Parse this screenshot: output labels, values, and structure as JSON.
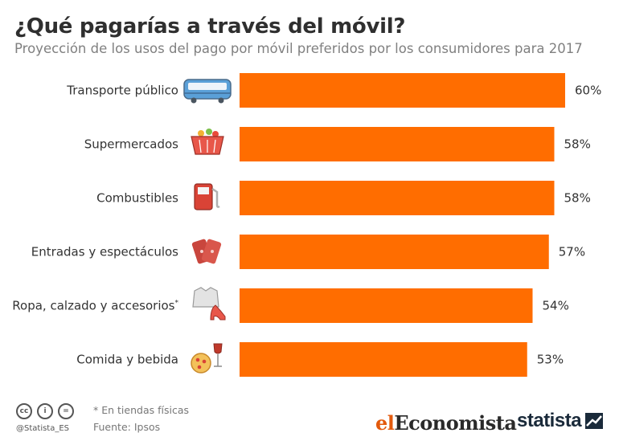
{
  "header": {
    "title": "¿Qué pagarías a través del móvil?",
    "subtitle": "Proyección de los usos del pago por móvil preferidos por los consumidores para 2017"
  },
  "chart_data": {
    "type": "bar",
    "orientation": "horizontal",
    "title": "¿Qué pagarías a través del móvil?",
    "subtitle": "Proyección de los usos del pago por móvil preferidos por los consumidores para 2017",
    "categories": [
      "Transporte público",
      "Supermercados",
      "Combustibles",
      "Entradas y espectáculos",
      "Ropa, calzado y accesorios",
      "Comida y bebida"
    ],
    "category_superscripts": [
      "",
      "",
      "",
      "",
      "*",
      ""
    ],
    "values": [
      60,
      58,
      58,
      57,
      54,
      53
    ],
    "value_labels": [
      "60%",
      "58%",
      "58%",
      "57%",
      "54%",
      "53%"
    ],
    "unit": "%",
    "xlim": [
      0,
      60
    ],
    "grid": false,
    "legend": "none",
    "bar_color": "#ff6d00",
    "icons": [
      "bus-icon",
      "basket-icon",
      "fuel-pump-icon",
      "tickets-icon",
      "clothing-icon",
      "pizza-wine-icon"
    ]
  },
  "footer": {
    "note": "* En tiendas físicas",
    "source": "Fuente: Ipsos",
    "handle": "@Statista_ES",
    "license_icons": [
      "cc-icon",
      "by-icon",
      "nd-icon"
    ],
    "brand_el": "el",
    "brand_economista": "Economista",
    "brand_statista": "statista"
  },
  "colors": {
    "bar": "#ff6d00",
    "title": "#2f2f2f",
    "subtitle": "#808080",
    "brand_orange": "#e35a0d"
  }
}
